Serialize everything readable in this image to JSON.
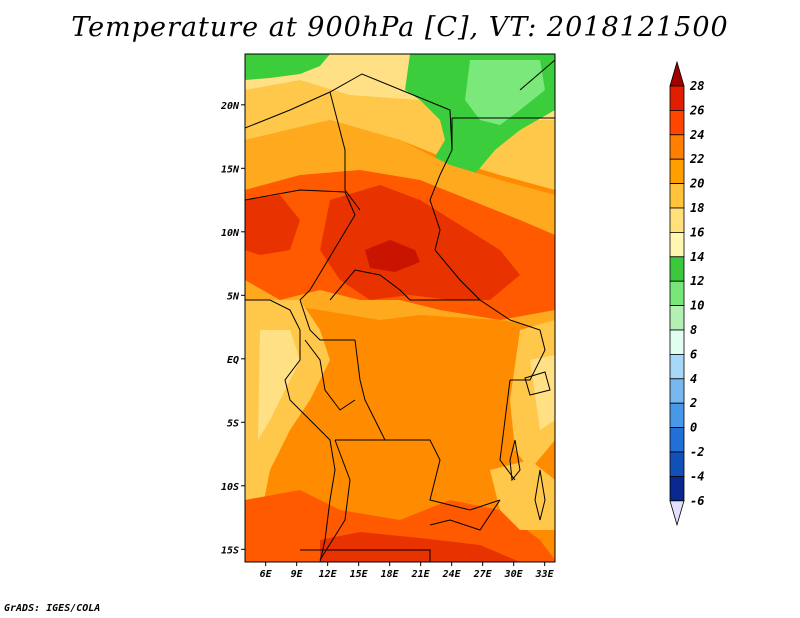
{
  "title": "Temperature at 900hPa [C], VT: 2018121500",
  "credit": "GrADS: IGES/COLA",
  "map": {
    "lon_range": [
      4,
      34
    ],
    "lat_range": [
      -16,
      24
    ],
    "lon_ticks": [
      "6E",
      "9E",
      "12E",
      "15E",
      "18E",
      "21E",
      "24E",
      "27E",
      "30E",
      "33E"
    ],
    "lat_ticks": [
      "20N",
      "15N",
      "10N",
      "5N",
      "EQ",
      "5S",
      "10S",
      "15S"
    ]
  },
  "colorbar": {
    "levels": [
      "28",
      "26",
      "24",
      "22",
      "20",
      "18",
      "16",
      "14",
      "12",
      "10",
      "8",
      "6",
      "4",
      "2",
      "0",
      "-2",
      "-4",
      "-6"
    ],
    "colors": [
      "#a00000",
      "#e01e00",
      "#ff4500",
      "#ff7f00",
      "#ffa000",
      "#ffc43c",
      "#ffe07a",
      "#fff6b0",
      "#3cc83c",
      "#78e678",
      "#b4f0b4",
      "#e0fff0",
      "#a8d8f8",
      "#78b8f0",
      "#4898e8",
      "#2070d8",
      "#1050b8",
      "#082890",
      "#000060",
      "#e0e0ff"
    ],
    "top_arrow_color": "#a00000",
    "bottom_arrow_color": "#e0e0ff"
  },
  "field_colors": {
    "t28": "#c81400",
    "t26": "#e83200",
    "t24": "#ff5a00",
    "t22": "#ff8c00",
    "t20": "#ffaa1e",
    "t18": "#ffc84b",
    "t16": "#ffe085",
    "t14": "#fff2ad",
    "t12": "#3ccd3c",
    "t10": "#7ae87a"
  }
}
